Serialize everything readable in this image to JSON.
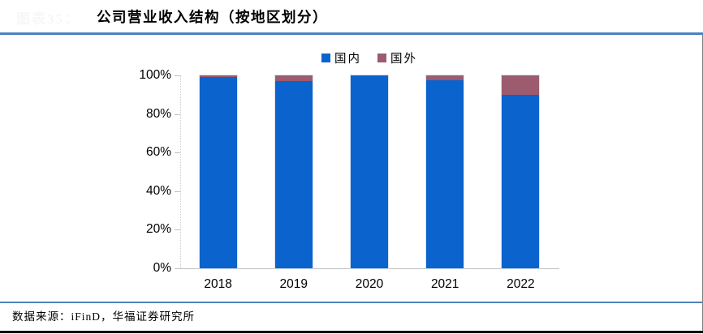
{
  "header": {
    "figure_label": "图表35：",
    "title": "公司营业收入结构（按地区划分）"
  },
  "footer": {
    "source": "数据来源：iFinD，华福证券研究所"
  },
  "colors": {
    "domestic_blue": "#0b63ce",
    "foreign_maroon": "#9c5b6e",
    "divider_blue": "#4f81bd",
    "bottom_black": "#000000",
    "axis_gray": "#bfbfbf"
  },
  "chart_data": {
    "type": "bar",
    "stacked": true,
    "title": "公司营业收入结构（按地区划分）",
    "categories": [
      "2018",
      "2019",
      "2020",
      "2021",
      "2022"
    ],
    "series": [
      {
        "name": "国内",
        "color": "#0b63ce",
        "values": [
          99.2,
          96.9,
          100,
          97.3,
          89.8
        ]
      },
      {
        "name": "国外",
        "color": "#9c5b6e",
        "values": [
          0.8,
          3.1,
          0,
          2.7,
          10.2
        ]
      }
    ],
    "xlabel": "",
    "ylabel": "",
    "ylim": [
      0,
      100
    ],
    "yticks": [
      0,
      20,
      40,
      60,
      80,
      100
    ],
    "ytick_labels": [
      "0%",
      "20%",
      "40%",
      "60%",
      "80%",
      "100%"
    ],
    "legend_position": "top-center",
    "grid": false
  }
}
